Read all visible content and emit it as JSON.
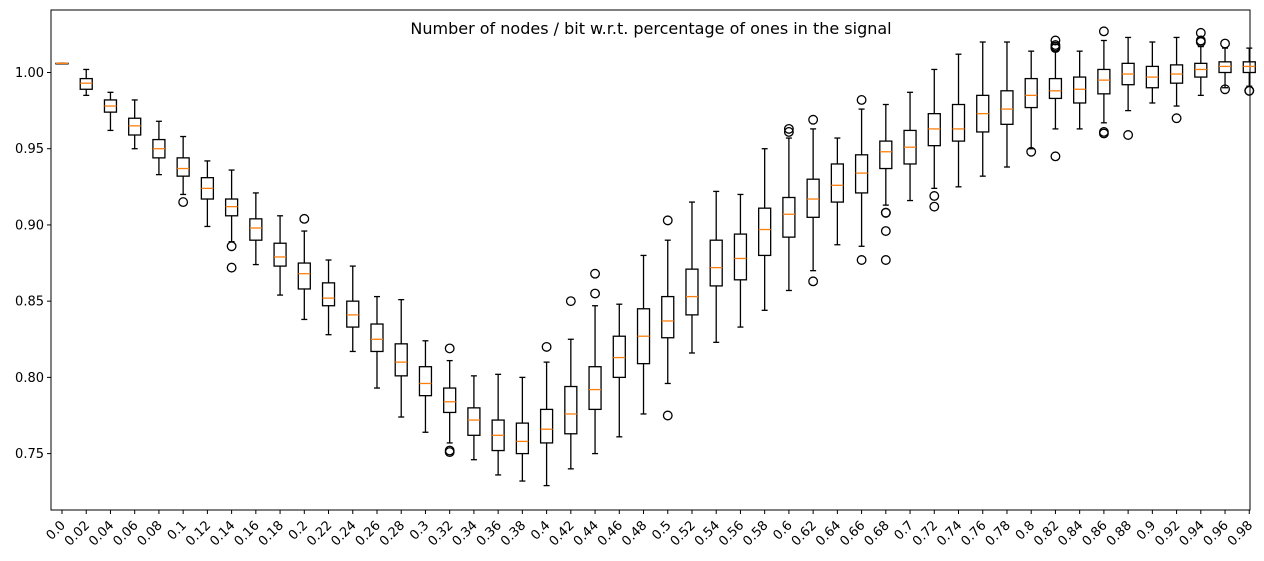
{
  "chart_data": {
    "type": "boxplot",
    "title": "Number of nodes / bit w.r.t. percentage of ones in the signal",
    "xlabel": "",
    "ylabel": "",
    "ylim": [
      0.713,
      1.041
    ],
    "yticks": [
      0.75,
      0.8,
      0.85,
      0.9,
      0.95,
      1.0
    ],
    "ytick_labels": [
      "0.75",
      "0.80",
      "0.85",
      "0.90",
      "0.95",
      "1.00"
    ],
    "colors": {
      "box": "#000000",
      "median": "#ff7f0e",
      "frame": "#000000"
    },
    "categories": [
      "0.0",
      "0.02",
      "0.04",
      "0.06",
      "0.08",
      "0.1",
      "0.12",
      "0.14",
      "0.16",
      "0.18",
      "0.2",
      "0.22",
      "0.24",
      "0.26",
      "0.28",
      "0.3",
      "0.32",
      "0.34",
      "0.36",
      "0.38",
      "0.4",
      "0.42",
      "0.44",
      "0.46",
      "0.48",
      "0.5",
      "0.52",
      "0.54",
      "0.56",
      "0.58",
      "0.6",
      "0.62",
      "0.64",
      "0.66",
      "0.68",
      "0.7",
      "0.72",
      "0.74",
      "0.76",
      "0.78",
      "0.8",
      "0.82",
      "0.84",
      "0.86",
      "0.88",
      "0.9",
      "0.92",
      "0.94",
      "0.96",
      "0.98"
    ],
    "boxes": [
      {
        "low": 1.006,
        "q1": 1.006,
        "median": 1.006,
        "q3": 1.006,
        "high": 1.006,
        "fliers": []
      },
      {
        "low": 0.985,
        "q1": 0.989,
        "median": 0.993,
        "q3": 0.996,
        "high": 1.002,
        "fliers": []
      },
      {
        "low": 0.962,
        "q1": 0.974,
        "median": 0.978,
        "q3": 0.982,
        "high": 0.987,
        "fliers": []
      },
      {
        "low": 0.95,
        "q1": 0.959,
        "median": 0.965,
        "q3": 0.97,
        "high": 0.982,
        "fliers": []
      },
      {
        "low": 0.933,
        "q1": 0.944,
        "median": 0.95,
        "q3": 0.956,
        "high": 0.968,
        "fliers": []
      },
      {
        "low": 0.92,
        "q1": 0.932,
        "median": 0.937,
        "q3": 0.944,
        "high": 0.958,
        "fliers": [
          0.915
        ]
      },
      {
        "low": 0.899,
        "q1": 0.917,
        "median": 0.924,
        "q3": 0.931,
        "high": 0.942,
        "fliers": []
      },
      {
        "low": 0.889,
        "q1": 0.906,
        "median": 0.912,
        "q3": 0.917,
        "high": 0.936,
        "fliers": [
          0.886,
          0.872
        ]
      },
      {
        "low": 0.874,
        "q1": 0.89,
        "median": 0.898,
        "q3": 0.904,
        "high": 0.921,
        "fliers": []
      },
      {
        "low": 0.854,
        "q1": 0.873,
        "median": 0.879,
        "q3": 0.888,
        "high": 0.906,
        "fliers": []
      },
      {
        "low": 0.838,
        "q1": 0.858,
        "median": 0.868,
        "q3": 0.875,
        "high": 0.896,
        "fliers": [
          0.904
        ]
      },
      {
        "low": 0.828,
        "q1": 0.847,
        "median": 0.852,
        "q3": 0.862,
        "high": 0.877,
        "fliers": []
      },
      {
        "low": 0.817,
        "q1": 0.833,
        "median": 0.841,
        "q3": 0.85,
        "high": 0.873,
        "fliers": []
      },
      {
        "low": 0.793,
        "q1": 0.817,
        "median": 0.825,
        "q3": 0.835,
        "high": 0.853,
        "fliers": []
      },
      {
        "low": 0.774,
        "q1": 0.801,
        "median": 0.81,
        "q3": 0.822,
        "high": 0.851,
        "fliers": []
      },
      {
        "low": 0.764,
        "q1": 0.788,
        "median": 0.796,
        "q3": 0.807,
        "high": 0.824,
        "fliers": []
      },
      {
        "low": 0.757,
        "q1": 0.777,
        "median": 0.784,
        "q3": 0.793,
        "high": 0.811,
        "fliers": [
          0.819,
          0.752,
          0.751
        ]
      },
      {
        "low": 0.746,
        "q1": 0.762,
        "median": 0.772,
        "q3": 0.78,
        "high": 0.801,
        "fliers": []
      },
      {
        "low": 0.736,
        "q1": 0.752,
        "median": 0.762,
        "q3": 0.772,
        "high": 0.802,
        "fliers": []
      },
      {
        "low": 0.732,
        "q1": 0.75,
        "median": 0.758,
        "q3": 0.77,
        "high": 0.8,
        "fliers": []
      },
      {
        "low": 0.729,
        "q1": 0.757,
        "median": 0.766,
        "q3": 0.779,
        "high": 0.81,
        "fliers": [
          0.82
        ]
      },
      {
        "low": 0.74,
        "q1": 0.763,
        "median": 0.776,
        "q3": 0.794,
        "high": 0.825,
        "fliers": [
          0.85
        ]
      },
      {
        "low": 0.75,
        "q1": 0.779,
        "median": 0.792,
        "q3": 0.807,
        "high": 0.847,
        "fliers": [
          0.855,
          0.868
        ]
      },
      {
        "low": 0.761,
        "q1": 0.8,
        "median": 0.813,
        "q3": 0.827,
        "high": 0.848,
        "fliers": []
      },
      {
        "low": 0.776,
        "q1": 0.809,
        "median": 0.827,
        "q3": 0.845,
        "high": 0.88,
        "fliers": []
      },
      {
        "low": 0.796,
        "q1": 0.826,
        "median": 0.837,
        "q3": 0.853,
        "high": 0.89,
        "fliers": [
          0.903,
          0.775
        ]
      },
      {
        "low": 0.816,
        "q1": 0.841,
        "median": 0.853,
        "q3": 0.871,
        "high": 0.915,
        "fliers": []
      },
      {
        "low": 0.823,
        "q1": 0.86,
        "median": 0.872,
        "q3": 0.89,
        "high": 0.922,
        "fliers": []
      },
      {
        "low": 0.833,
        "q1": 0.864,
        "median": 0.878,
        "q3": 0.894,
        "high": 0.92,
        "fliers": []
      },
      {
        "low": 0.844,
        "q1": 0.88,
        "median": 0.897,
        "q3": 0.911,
        "high": 0.95,
        "fliers": []
      },
      {
        "low": 0.857,
        "q1": 0.892,
        "median": 0.907,
        "q3": 0.918,
        "high": 0.957,
        "fliers": [
          0.961,
          0.963
        ]
      },
      {
        "low": 0.87,
        "q1": 0.905,
        "median": 0.917,
        "q3": 0.93,
        "high": 0.963,
        "fliers": [
          0.969,
          0.863
        ]
      },
      {
        "low": 0.887,
        "q1": 0.915,
        "median": 0.926,
        "q3": 0.94,
        "high": 0.957,
        "fliers": []
      },
      {
        "low": 0.886,
        "q1": 0.921,
        "median": 0.934,
        "q3": 0.946,
        "high": 0.976,
        "fliers": [
          0.982,
          0.877
        ]
      },
      {
        "low": 0.913,
        "q1": 0.937,
        "median": 0.948,
        "q3": 0.955,
        "high": 0.979,
        "fliers": [
          0.908,
          0.908,
          0.896,
          0.877
        ]
      },
      {
        "low": 0.916,
        "q1": 0.94,
        "median": 0.951,
        "q3": 0.962,
        "high": 0.987,
        "fliers": []
      },
      {
        "low": 0.924,
        "q1": 0.952,
        "median": 0.963,
        "q3": 0.973,
        "high": 1.002,
        "fliers": [
          0.919,
          0.912
        ]
      },
      {
        "low": 0.925,
        "q1": 0.955,
        "median": 0.963,
        "q3": 0.979,
        "high": 1.012,
        "fliers": []
      },
      {
        "low": 0.932,
        "q1": 0.961,
        "median": 0.973,
        "q3": 0.985,
        "high": 1.02,
        "fliers": []
      },
      {
        "low": 0.938,
        "q1": 0.966,
        "median": 0.976,
        "q3": 0.988,
        "high": 1.02,
        "fliers": []
      },
      {
        "low": 0.95,
        "q1": 0.977,
        "median": 0.985,
        "q3": 0.996,
        "high": 1.014,
        "fliers": [
          0.948
        ]
      },
      {
        "low": 0.963,
        "q1": 0.983,
        "median": 0.988,
        "q3": 0.996,
        "high": 1.014,
        "fliers": [
          1.016,
          1.017,
          1.018,
          1.021,
          0.945
        ]
      },
      {
        "low": 0.963,
        "q1": 0.98,
        "median": 0.989,
        "q3": 0.997,
        "high": 1.014,
        "fliers": []
      },
      {
        "low": 0.967,
        "q1": 0.986,
        "median": 0.995,
        "q3": 1.002,
        "high": 1.021,
        "fliers": [
          1.027,
          0.961,
          0.96
        ]
      },
      {
        "low": 0.975,
        "q1": 0.992,
        "median": 0.999,
        "q3": 1.006,
        "high": 1.023,
        "fliers": [
          0.959
        ]
      },
      {
        "low": 0.98,
        "q1": 0.99,
        "median": 0.997,
        "q3": 1.004,
        "high": 1.02,
        "fliers": []
      },
      {
        "low": 0.978,
        "q1": 0.993,
        "median": 0.999,
        "q3": 1.005,
        "high": 1.023,
        "fliers": [
          0.97
        ]
      },
      {
        "low": 0.985,
        "q1": 0.997,
        "median": 1.002,
        "q3": 1.006,
        "high": 1.017,
        "fliers": [
          1.02,
          1.021,
          1.026
        ]
      },
      {
        "low": 0.99,
        "q1": 1.0,
        "median": 1.004,
        "q3": 1.007,
        "high": 1.016,
        "fliers": [
          1.019,
          0.989
        ]
      },
      {
        "low": 0.991,
        "q1": 1.0,
        "median": 1.004,
        "q3": 1.007,
        "high": 1.016,
        "fliers": [
          0.988,
          0.988
        ]
      }
    ]
  }
}
